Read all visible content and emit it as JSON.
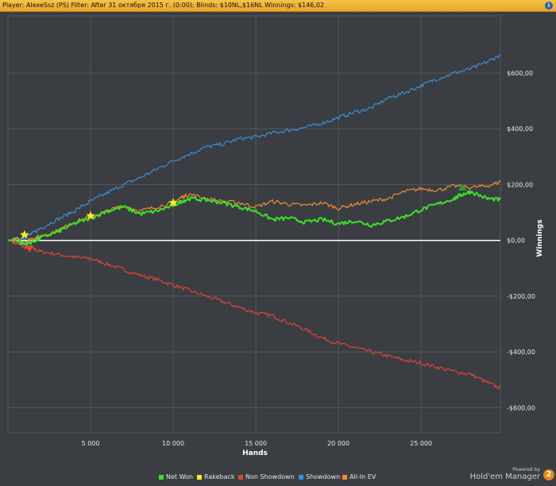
{
  "header": {
    "text": "Player: AlexeSsz (PS) Filter: After 31 октября 2015 г. (0:00); Blinds: $10NL,$16NL Winnings: $146,02",
    "info_icon": "info-icon"
  },
  "branding": {
    "powered_by": "Powered by",
    "product": "Hold'em Manager",
    "badge": "2"
  },
  "colors": {
    "background": "#3a3d42",
    "grid": "#54575c",
    "zero_line": "#ffffff",
    "net_won": "#3de02a",
    "rakeback": "#f2ee2a",
    "non_showdown": "#e0443a",
    "showdown": "#3a8fd8",
    "allin_ev": "#ef8d2e"
  },
  "chart_data": {
    "type": "line",
    "xlabel": "Hands",
    "ylabel": "Winnings",
    "xlim": [
      0,
      29800
    ],
    "ylim": [
      -690,
      805
    ],
    "x_ticks": [
      {
        "value": 5000,
        "label": "5 000"
      },
      {
        "value": 10000,
        "label": "10 000"
      },
      {
        "value": 15000,
        "label": "15 000"
      },
      {
        "value": 20000,
        "label": "20 000"
      },
      {
        "value": 25000,
        "label": "25 000"
      }
    ],
    "y_ticks": [
      {
        "value": 600,
        "label": "$600,00"
      },
      {
        "value": 400,
        "label": "$400,00"
      },
      {
        "value": 200,
        "label": "$200,00"
      },
      {
        "value": 0,
        "label": "$0,00"
      },
      {
        "value": -200,
        "label": "-$200,00"
      },
      {
        "value": -400,
        "label": "-$400,00"
      },
      {
        "value": -600,
        "label": "-$600,00"
      }
    ],
    "grid": true,
    "legend_position": "bottom",
    "series": [
      {
        "name": "Net Won",
        "color_key": "net_won",
        "x": [
          0,
          500,
          1000,
          1500,
          2000,
          3000,
          4000,
          5000,
          6000,
          7000,
          8000,
          9000,
          10000,
          10500,
          11000,
          12000,
          13000,
          14000,
          15000,
          16000,
          17000,
          18000,
          19000,
          20000,
          21000,
          22000,
          23000,
          24000,
          25000,
          26000,
          27000,
          27500,
          28000,
          29000,
          29800
        ],
        "y": [
          0,
          2,
          -15,
          -5,
          10,
          30,
          60,
          80,
          105,
          120,
          95,
          105,
          125,
          140,
          150,
          145,
          135,
          120,
          105,
          75,
          80,
          65,
          75,
          60,
          70,
          55,
          70,
          85,
          110,
          130,
          150,
          165,
          175,
          150,
          146
        ]
      },
      {
        "name": "Rakeback",
        "color_key": "rakeback",
        "x": [],
        "y": []
      },
      {
        "name": "Non Showdown",
        "color_key": "non_showdown",
        "x": [
          0,
          500,
          1000,
          1500,
          2000,
          3000,
          4000,
          5000,
          6000,
          7000,
          8000,
          9000,
          10000,
          11000,
          12000,
          13000,
          14000,
          15000,
          16000,
          17000,
          18000,
          19000,
          20000,
          21000,
          22000,
          23000,
          24000,
          25000,
          26000,
          27000,
          28000,
          29000,
          29800
        ],
        "y": [
          0,
          -10,
          -25,
          -30,
          -40,
          -50,
          -60,
          -65,
          -85,
          -105,
          -125,
          -140,
          -160,
          -180,
          -200,
          -220,
          -240,
          -260,
          -270,
          -295,
          -320,
          -350,
          -370,
          -385,
          -400,
          -415,
          -430,
          -440,
          -455,
          -470,
          -480,
          -510,
          -530
        ]
      },
      {
        "name": "Showdown",
        "color_key": "showdown",
        "x": [
          0,
          500,
          1000,
          1500,
          2000,
          3000,
          4000,
          5000,
          6000,
          7000,
          8000,
          9000,
          10000,
          11000,
          12000,
          13000,
          14000,
          15000,
          16000,
          17000,
          18000,
          19000,
          20000,
          21000,
          22000,
          23000,
          24000,
          25000,
          26000,
          27000,
          28000,
          29000,
          29800
        ],
        "y": [
          0,
          5,
          10,
          25,
          45,
          75,
          105,
          140,
          170,
          200,
          225,
          255,
          285,
          310,
          335,
          345,
          365,
          370,
          385,
          395,
          405,
          420,
          440,
          460,
          475,
          510,
          530,
          555,
          580,
          600,
          615,
          640,
          665
        ]
      },
      {
        "name": "All-In EV",
        "color_key": "allin_ev",
        "x": [
          0,
          500,
          1000,
          1500,
          2000,
          3000,
          4000,
          5000,
          6000,
          7000,
          8000,
          9000,
          10000,
          10500,
          11000,
          12000,
          13000,
          14000,
          15000,
          16000,
          17000,
          18000,
          19000,
          20000,
          21000,
          22000,
          23000,
          24000,
          25000,
          26000,
          27000,
          28000,
          29000,
          29800
        ],
        "y": [
          0,
          4,
          -5,
          8,
          15,
          35,
          65,
          85,
          105,
          125,
          105,
          120,
          135,
          155,
          165,
          150,
          140,
          135,
          120,
          140,
          130,
          125,
          135,
          115,
          130,
          140,
          150,
          175,
          185,
          180,
          195,
          190,
          195,
          210
        ]
      }
    ],
    "markers": [
      {
        "series": "Rakeback",
        "shape": "star",
        "x": 1000,
        "y": 20
      },
      {
        "series": "Rakeback",
        "shape": "star",
        "x": 5000,
        "y": 88
      },
      {
        "series": "Rakeback",
        "shape": "star",
        "x": 10000,
        "y": 135
      },
      {
        "series": "Non Showdown",
        "shape": "triangle-down",
        "x": 1300,
        "y": -30
      },
      {
        "series": "All-In EV",
        "shape": "triangle-up",
        "x": 27500,
        "y": 190
      }
    ]
  }
}
